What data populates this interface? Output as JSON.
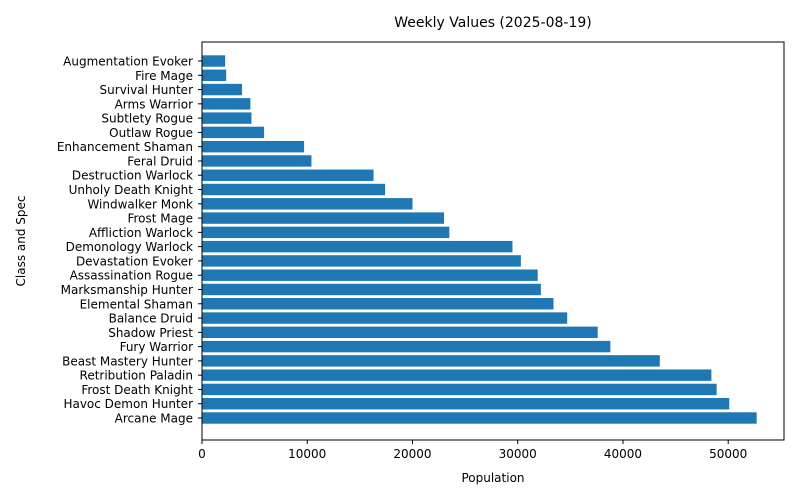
{
  "chart_data": {
    "type": "bar",
    "orientation": "horizontal",
    "title": "Weekly Values (2025-08-19)",
    "xlabel": "Population",
    "ylabel": "Class and Spec",
    "xlim": [
      0,
      55300
    ],
    "xticks": [
      0,
      10000,
      20000,
      30000,
      40000,
      50000
    ],
    "grid": false,
    "bar_color": "#1f77b4",
    "categories": [
      "Arcane Mage",
      "Havoc Demon Hunter",
      "Frost Death Knight",
      "Retribution Paladin",
      "Beast Mastery Hunter",
      "Fury Warrior",
      "Shadow Priest",
      "Balance Druid",
      "Elemental Shaman",
      "Marksmanship Hunter",
      "Assassination Rogue",
      "Devastation Evoker",
      "Demonology Warlock",
      "Affliction Warlock",
      "Frost Mage",
      "Windwalker Monk",
      "Unholy Death Knight",
      "Destruction Warlock",
      "Feral Druid",
      "Enhancement Shaman",
      "Outlaw Rogue",
      "Subtlety Rogue",
      "Arms Warrior",
      "Survival Hunter",
      "Fire Mage",
      "Augmentation Evoker"
    ],
    "values": [
      52700,
      50100,
      48900,
      48400,
      43500,
      38800,
      37600,
      34700,
      33400,
      32200,
      31900,
      30300,
      29500,
      23500,
      23000,
      20000,
      17400,
      16300,
      10400,
      9700,
      5900,
      4700,
      4600,
      3800,
      2300,
      2200
    ]
  }
}
